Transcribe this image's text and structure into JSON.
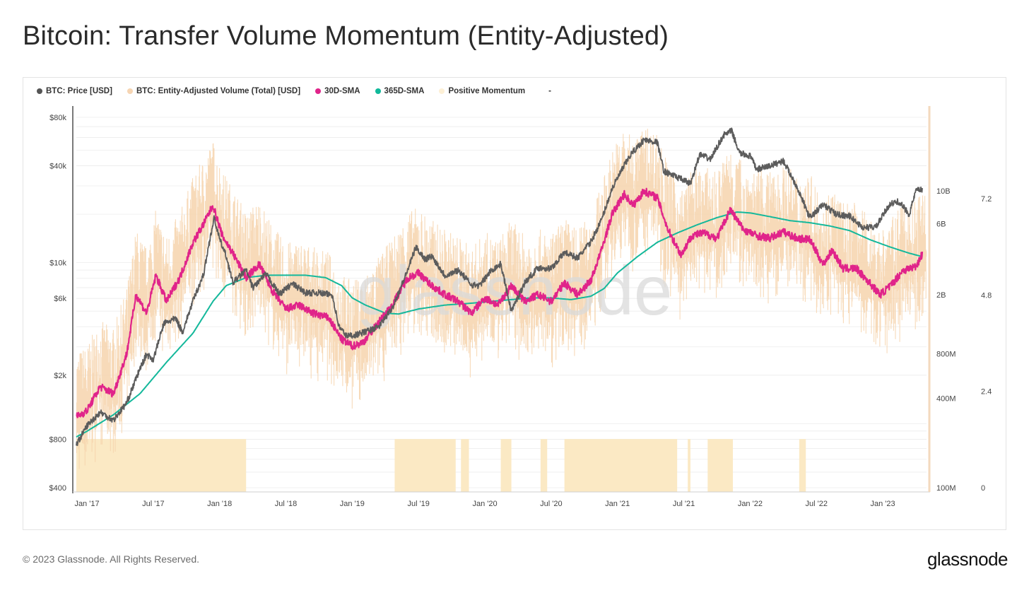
{
  "title": "Bitcoin: Transfer Volume Momentum (Entity-Adjusted)",
  "footer": {
    "copyright": "© 2023 Glassnode. All Rights Reserved.",
    "logo": "glassnode"
  },
  "watermark": "glassnode",
  "legend": [
    {
      "label": "BTC: Price [USD]",
      "color": "#555555"
    },
    {
      "label": "BTC: Entity-Adjusted Volume (Total) [USD]",
      "color": "#f6d5b3"
    },
    {
      "label": "30D-SMA",
      "color": "#e0248a"
    },
    {
      "label": "365D-SMA",
      "color": "#10b99a"
    },
    {
      "label": "Positive Momentum",
      "color": "#fdf0d6"
    },
    {
      "label": "-",
      "color": ""
    }
  ],
  "colors": {
    "price": "#5c5c5c",
    "volume": "#f6d3ad",
    "sma30": "#e0248a",
    "sma365": "#14b89b",
    "momentum": "#fbe9c4",
    "grid": "#ececec"
  },
  "chart_data": {
    "type": "line",
    "title": "Bitcoin: Transfer Volume Momentum (Entity-Adjusted)",
    "x_range": [
      "2016-12-01",
      "2023-05-01"
    ],
    "x_ticks": [
      "Jan '17",
      "Jul '17",
      "Jan '18",
      "Jul '18",
      "Jan '19",
      "Jul '19",
      "Jan '20",
      "Jul '20",
      "Jan '21",
      "Jul '21",
      "Jan '22",
      "Jul '22",
      "Jan '23"
    ],
    "x_tick_times": [
      2017.0,
      2017.5,
      2018.0,
      2018.5,
      2019.0,
      2019.5,
      2020.0,
      2020.5,
      2021.0,
      2021.5,
      2022.0,
      2022.5,
      2023.0
    ],
    "y_left": {
      "label": "BTC: Price [USD]",
      "scale": "log",
      "ticks": [
        "$80k",
        "$40k",
        "$10k",
        "$6k",
        "$2k",
        "$800",
        "$400"
      ],
      "tick_values": [
        80000,
        40000,
        10000,
        6000,
        2000,
        800,
        400
      ],
      "range": [
        400,
        80000
      ]
    },
    "y_right_volume": {
      "label": "BTC: Entity-Adjusted Volume (Total) [USD]",
      "scale": "log",
      "ticks": [
        "10B",
        "6B",
        "2B",
        "800M",
        "400M",
        "100M"
      ],
      "tick_values": [
        10000000000,
        6000000000,
        2000000000,
        800000000,
        400000000,
        100000000
      ],
      "range": [
        100000000,
        40000000000
      ]
    },
    "y_right_momentum": {
      "label": "Positive Momentum",
      "ticks": [
        "7.2",
        "4.8",
        "2.4",
        "0"
      ],
      "tick_values": [
        7.2,
        4.8,
        2.4,
        0
      ]
    },
    "series": [
      {
        "name": "BTC: Price [USD]",
        "axis": "price",
        "points": [
          [
            2016.92,
            740
          ],
          [
            2017.0,
            970
          ],
          [
            2017.1,
            1180
          ],
          [
            2017.2,
            1050
          ],
          [
            2017.3,
            1350
          ],
          [
            2017.4,
            2200
          ],
          [
            2017.45,
            2700
          ],
          [
            2017.5,
            2500
          ],
          [
            2017.58,
            4200
          ],
          [
            2017.67,
            4500
          ],
          [
            2017.72,
            3700
          ],
          [
            2017.8,
            5800
          ],
          [
            2017.88,
            8500
          ],
          [
            2017.93,
            14500
          ],
          [
            2017.96,
            19000
          ],
          [
            2018.0,
            14000
          ],
          [
            2018.05,
            11000
          ],
          [
            2018.1,
            7500
          ],
          [
            2018.2,
            9000
          ],
          [
            2018.25,
            7000
          ],
          [
            2018.35,
            8500
          ],
          [
            2018.45,
            6400
          ],
          [
            2018.55,
            7400
          ],
          [
            2018.65,
            6500
          ],
          [
            2018.75,
            6500
          ],
          [
            2018.85,
            6300
          ],
          [
            2018.9,
            4000
          ],
          [
            2018.96,
            3500
          ],
          [
            2019.05,
            3600
          ],
          [
            2019.2,
            4000
          ],
          [
            2019.3,
            5200
          ],
          [
            2019.4,
            8200
          ],
          [
            2019.48,
            12500
          ],
          [
            2019.55,
            10500
          ],
          [
            2019.6,
            11000
          ],
          [
            2019.7,
            8300
          ],
          [
            2019.8,
            9000
          ],
          [
            2019.9,
            7300
          ],
          [
            2019.96,
            7200
          ],
          [
            2020.05,
            9000
          ],
          [
            2020.12,
            9800
          ],
          [
            2020.2,
            5000
          ],
          [
            2020.3,
            7500
          ],
          [
            2020.4,
            9300
          ],
          [
            2020.5,
            9200
          ],
          [
            2020.6,
            11600
          ],
          [
            2020.7,
            10700
          ],
          [
            2020.8,
            13500
          ],
          [
            2020.88,
            18500
          ],
          [
            2020.96,
            29000
          ],
          [
            2021.05,
            40000
          ],
          [
            2021.1,
            47000
          ],
          [
            2021.2,
            58000
          ],
          [
            2021.3,
            56000
          ],
          [
            2021.35,
            37000
          ],
          [
            2021.45,
            34000
          ],
          [
            2021.55,
            31000
          ],
          [
            2021.62,
            47000
          ],
          [
            2021.7,
            44000
          ],
          [
            2021.8,
            62000
          ],
          [
            2021.86,
            66000
          ],
          [
            2021.92,
            48000
          ],
          [
            2022.0,
            46000
          ],
          [
            2022.05,
            38000
          ],
          [
            2022.15,
            40000
          ],
          [
            2022.25,
            43000
          ],
          [
            2022.35,
            30000
          ],
          [
            2022.45,
            19000
          ],
          [
            2022.55,
            23000
          ],
          [
            2022.65,
            20000
          ],
          [
            2022.75,
            19500
          ],
          [
            2022.85,
            16500
          ],
          [
            2022.95,
            16700
          ],
          [
            2023.05,
            23000
          ],
          [
            2023.12,
            24000
          ],
          [
            2023.2,
            20000
          ],
          [
            2023.25,
            28000
          ],
          [
            2023.3,
            28500
          ]
        ]
      },
      {
        "name": "30D-SMA",
        "axis": "volume",
        "points": [
          [
            2016.92,
            300000000
          ],
          [
            2017.0,
            330000000
          ],
          [
            2017.1,
            480000000
          ],
          [
            2017.2,
            430000000
          ],
          [
            2017.3,
            800000000
          ],
          [
            2017.37,
            2000000000
          ],
          [
            2017.45,
            1500000000
          ],
          [
            2017.52,
            2700000000
          ],
          [
            2017.6,
            1800000000
          ],
          [
            2017.7,
            2600000000
          ],
          [
            2017.8,
            4500000000
          ],
          [
            2017.88,
            6000000000
          ],
          [
            2017.95,
            8000000000
          ],
          [
            2018.02,
            5000000000
          ],
          [
            2018.1,
            3800000000
          ],
          [
            2018.2,
            2600000000
          ],
          [
            2018.3,
            3200000000
          ],
          [
            2018.4,
            2100000000
          ],
          [
            2018.5,
            1600000000
          ],
          [
            2018.6,
            1700000000
          ],
          [
            2018.7,
            1500000000
          ],
          [
            2018.82,
            1400000000
          ],
          [
            2018.92,
            1000000000
          ],
          [
            2019.0,
            900000000
          ],
          [
            2019.08,
            950000000
          ],
          [
            2019.2,
            1300000000
          ],
          [
            2019.3,
            1700000000
          ],
          [
            2019.42,
            2600000000
          ],
          [
            2019.5,
            2800000000
          ],
          [
            2019.6,
            2300000000
          ],
          [
            2019.7,
            2000000000
          ],
          [
            2019.8,
            1800000000
          ],
          [
            2019.9,
            1500000000
          ],
          [
            2020.0,
            1900000000
          ],
          [
            2020.1,
            1700000000
          ],
          [
            2020.2,
            2300000000
          ],
          [
            2020.3,
            1800000000
          ],
          [
            2020.4,
            2000000000
          ],
          [
            2020.5,
            1800000000
          ],
          [
            2020.6,
            2400000000
          ],
          [
            2020.7,
            2000000000
          ],
          [
            2020.8,
            2500000000
          ],
          [
            2020.88,
            4000000000
          ],
          [
            2020.96,
            7000000000
          ],
          [
            2021.05,
            9500000000
          ],
          [
            2021.12,
            8000000000
          ],
          [
            2021.2,
            10000000000
          ],
          [
            2021.3,
            9000000000
          ],
          [
            2021.38,
            5500000000
          ],
          [
            2021.48,
            3700000000
          ],
          [
            2021.56,
            5000000000
          ],
          [
            2021.65,
            5200000000
          ],
          [
            2021.75,
            4800000000
          ],
          [
            2021.85,
            7500000000
          ],
          [
            2021.95,
            5500000000
          ],
          [
            2022.05,
            5000000000
          ],
          [
            2022.15,
            4800000000
          ],
          [
            2022.25,
            5300000000
          ],
          [
            2022.35,
            4800000000
          ],
          [
            2022.45,
            4700000000
          ],
          [
            2022.55,
            3200000000
          ],
          [
            2022.62,
            4000000000
          ],
          [
            2022.7,
            3000000000
          ],
          [
            2022.8,
            3000000000
          ],
          [
            2022.9,
            2400000000
          ],
          [
            2022.98,
            2000000000
          ],
          [
            2023.06,
            2300000000
          ],
          [
            2023.15,
            2900000000
          ],
          [
            2023.25,
            3100000000
          ],
          [
            2023.3,
            3800000000
          ]
        ]
      },
      {
        "name": "365D-SMA",
        "axis": "volume",
        "points": [
          [
            2016.92,
            220000000
          ],
          [
            2017.0,
            240000000
          ],
          [
            2017.2,
            310000000
          ],
          [
            2017.4,
            430000000
          ],
          [
            2017.6,
            700000000
          ],
          [
            2017.8,
            1100000000
          ],
          [
            2017.95,
            1800000000
          ],
          [
            2018.05,
            2300000000
          ],
          [
            2018.2,
            2600000000
          ],
          [
            2018.35,
            2700000000
          ],
          [
            2018.5,
            2700000000
          ],
          [
            2018.65,
            2700000000
          ],
          [
            2018.8,
            2600000000
          ],
          [
            2018.92,
            2300000000
          ],
          [
            2019.0,
            1900000000
          ],
          [
            2019.1,
            1700000000
          ],
          [
            2019.25,
            1500000000
          ],
          [
            2019.35,
            1480000000
          ],
          [
            2019.5,
            1600000000
          ],
          [
            2019.7,
            1700000000
          ],
          [
            2019.9,
            1750000000
          ],
          [
            2020.05,
            1800000000
          ],
          [
            2020.2,
            1850000000
          ],
          [
            2020.35,
            1900000000
          ],
          [
            2020.5,
            1900000000
          ],
          [
            2020.65,
            1850000000
          ],
          [
            2020.8,
            1950000000
          ],
          [
            2020.9,
            2200000000
          ],
          [
            2021.0,
            2800000000
          ],
          [
            2021.15,
            3600000000
          ],
          [
            2021.3,
            4500000000
          ],
          [
            2021.45,
            5200000000
          ],
          [
            2021.6,
            5900000000
          ],
          [
            2021.75,
            6600000000
          ],
          [
            2021.9,
            7200000000
          ],
          [
            2022.0,
            7100000000
          ],
          [
            2022.15,
            6700000000
          ],
          [
            2022.3,
            6300000000
          ],
          [
            2022.45,
            6100000000
          ],
          [
            2022.6,
            5800000000
          ],
          [
            2022.75,
            5400000000
          ],
          [
            2022.9,
            4700000000
          ],
          [
            2023.05,
            4200000000
          ],
          [
            2023.2,
            3800000000
          ],
          [
            2023.3,
            3600000000
          ]
        ]
      }
    ],
    "volume_band": {
      "name": "BTC: Entity-Adjusted Volume (Total) [USD]",
      "axis": "volume",
      "base_series": "30D-SMA",
      "daily_spread_factor": [
        0.35,
        2.8
      ]
    },
    "positive_momentum_periods": [
      [
        2016.92,
        2018.2
      ],
      [
        2019.32,
        2019.78
      ],
      [
        2019.82,
        2019.88
      ],
      [
        2020.12,
        2020.2
      ],
      [
        2020.42,
        2020.47
      ],
      [
        2020.6,
        2021.45
      ],
      [
        2021.53,
        2021.55
      ],
      [
        2021.68,
        2021.87
      ],
      [
        2022.37,
        2022.42
      ]
    ],
    "positive_momentum_level": 1
  }
}
